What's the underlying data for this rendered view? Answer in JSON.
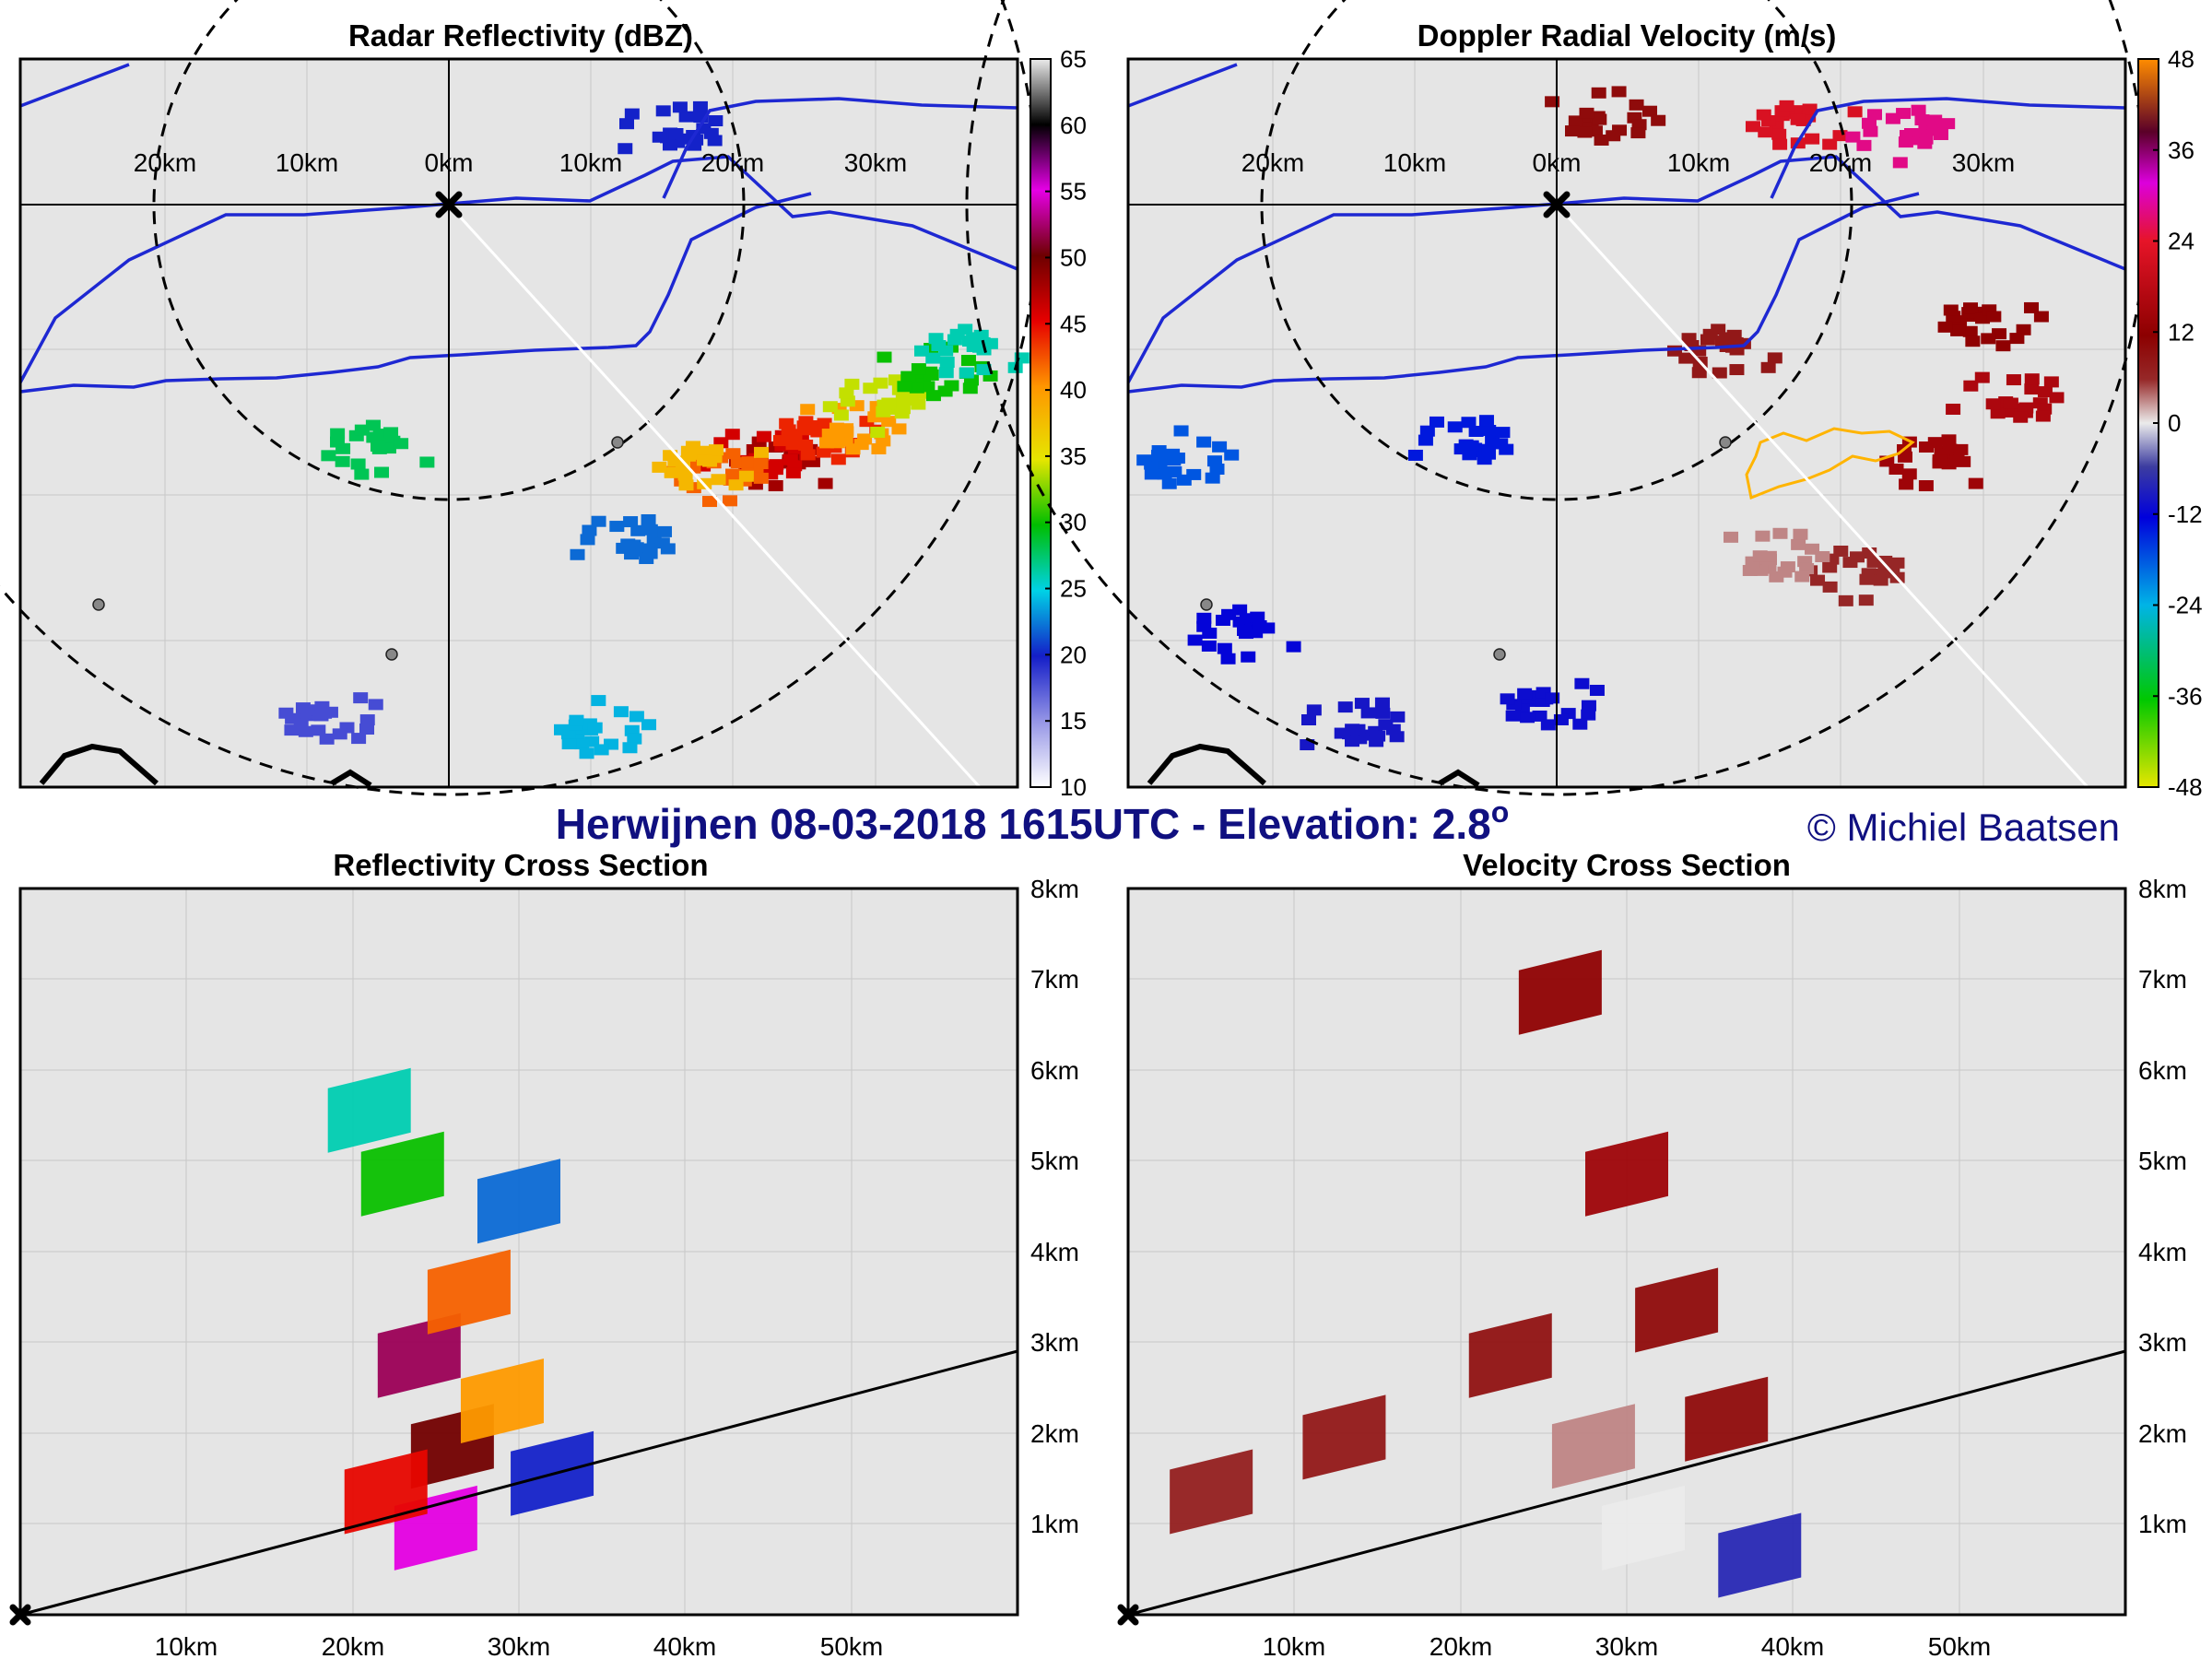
{
  "figure": {
    "main_title": "Herwijnen 08-03-2018 1615UTC - Elevation: 2.8",
    "degree_symbol": "o",
    "credit": "© Michiel Baatsen"
  },
  "chart_data": [
    {
      "id": "reflectivity_ppi",
      "type": "heatmap",
      "title": "Radar Reflectivity (dBZ)",
      "x_tick_labels": [
        "20km",
        "10km",
        "0km",
        "10km",
        "20km",
        "30km"
      ],
      "colorbar": {
        "ticks": [
          10,
          15,
          20,
          25,
          30,
          35,
          40,
          45,
          50,
          55,
          60,
          65
        ],
        "range": [
          10,
          65
        ]
      },
      "cells": [
        {
          "x": 24,
          "y": -18,
          "value": 48
        },
        {
          "x": 22,
          "y": -18,
          "value": 46
        },
        {
          "x": 26,
          "y": -16,
          "value": 44
        },
        {
          "x": 20,
          "y": -19,
          "value": 42
        },
        {
          "x": 28,
          "y": -16,
          "value": 40
        },
        {
          "x": 18,
          "y": -18,
          "value": 38
        },
        {
          "x": 31,
          "y": -14,
          "value": 34
        },
        {
          "x": 34,
          "y": -12,
          "value": 30
        },
        {
          "x": 37,
          "y": -10,
          "value": 26
        },
        {
          "x": 13,
          "y": -24,
          "value": 22
        },
        {
          "x": 10,
          "y": -37,
          "value": 24
        },
        {
          "x": -5,
          "y": -17,
          "value": 28
        },
        {
          "x": 16,
          "y": 5,
          "value": 20
        },
        {
          "x": -9,
          "y": -36,
          "value": 18
        }
      ]
    },
    {
      "id": "velocity_ppi",
      "type": "heatmap",
      "title": "Doppler Radial Velocity (m/s)",
      "x_tick_labels": [
        "20km",
        "10km",
        "0km",
        "10km",
        "20km",
        "30km"
      ],
      "colorbar": {
        "ticks": [
          48,
          36,
          24,
          12,
          0,
          -12,
          -24,
          -36,
          -48
        ],
        "range": [
          -48,
          48
        ]
      },
      "cells": [
        {
          "x": 27,
          "y": -18,
          "value": 14
        },
        {
          "x": 32,
          "y": -14,
          "value": 16
        },
        {
          "x": 30,
          "y": -8,
          "value": 12
        },
        {
          "x": 22,
          "y": -26,
          "value": 6
        },
        {
          "x": 15,
          "y": -25,
          "value": 3
        },
        {
          "x": 17,
          "y": 6,
          "value": 22
        },
        {
          "x": 25,
          "y": 5,
          "value": 28
        },
        {
          "x": 3,
          "y": 6,
          "value": 10
        },
        {
          "x": 12,
          "y": -10,
          "value": 8
        },
        {
          "x": -6,
          "y": -17,
          "value": -14
        },
        {
          "x": -27,
          "y": -18,
          "value": -18
        },
        {
          "x": -22,
          "y": -30,
          "value": -12
        },
        {
          "x": -14,
          "y": -37,
          "value": -10
        },
        {
          "x": -1,
          "y": -35,
          "value": -11
        }
      ]
    },
    {
      "id": "reflectivity_cross_section",
      "type": "heatmap",
      "title": "Reflectivity Cross Section",
      "x_tick_labels": [
        "10km",
        "20km",
        "30km",
        "40km",
        "50km"
      ],
      "y_tick_labels": [
        "1km",
        "2km",
        "3km",
        "4km",
        "5km",
        "6km",
        "7km",
        "8km"
      ],
      "xlim": [
        0,
        60
      ],
      "ylim": [
        0,
        8
      ],
      "beam_line": {
        "x": [
          0,
          60
        ],
        "y": [
          0,
          2.9
        ]
      },
      "cells": [
        {
          "x": 24,
          "y": 2.5,
          "value": 52
        },
        {
          "x": 26,
          "y": 1.5,
          "value": 50
        },
        {
          "x": 25,
          "y": 0.6,
          "value": 55
        },
        {
          "x": 27,
          "y": 3.2,
          "value": 42
        },
        {
          "x": 23,
          "y": 4.5,
          "value": 30
        },
        {
          "x": 30,
          "y": 4.2,
          "value": 22
        },
        {
          "x": 29,
          "y": 2.0,
          "value": 40
        },
        {
          "x": 22,
          "y": 1.0,
          "value": 45
        },
        {
          "x": 32,
          "y": 1.2,
          "value": 20
        },
        {
          "x": 21,
          "y": 5.2,
          "value": 26
        }
      ]
    },
    {
      "id": "velocity_cross_section",
      "type": "heatmap",
      "title": "Velocity Cross Section",
      "x_tick_labels": [
        "10km",
        "20km",
        "30km",
        "40km",
        "50km"
      ],
      "y_tick_labels": [
        "1km",
        "2km",
        "3km",
        "4km",
        "5km",
        "6km",
        "7km",
        "8km"
      ],
      "xlim": [
        0,
        60
      ],
      "ylim": [
        0,
        8
      ],
      "beam_line": {
        "x": [
          0,
          60
        ],
        "y": [
          0,
          2.9
        ]
      },
      "cells": [
        {
          "x": 26,
          "y": 6.5,
          "value": 12
        },
        {
          "x": 30,
          "y": 4.5,
          "value": 14
        },
        {
          "x": 33,
          "y": 3.0,
          "value": 10
        },
        {
          "x": 23,
          "y": 2.5,
          "value": 9
        },
        {
          "x": 28,
          "y": 1.5,
          "value": 3
        },
        {
          "x": 31,
          "y": 0.6,
          "value": 0
        },
        {
          "x": 13,
          "y": 1.6,
          "value": 8
        },
        {
          "x": 5,
          "y": 1.0,
          "value": 7
        },
        {
          "x": 36,
          "y": 1.8,
          "value": 10
        },
        {
          "x": 38,
          "y": 0.3,
          "value": -8
        }
      ]
    }
  ]
}
